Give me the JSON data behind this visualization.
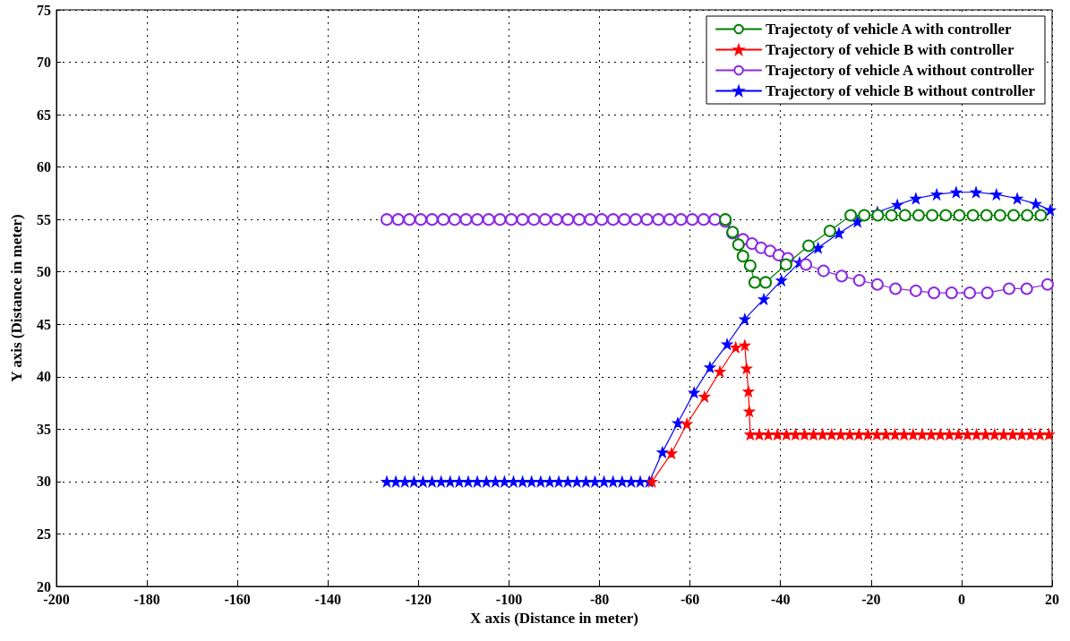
{
  "chart_data": {
    "type": "line",
    "xlabel": "X axis (Distance in meter)",
    "ylabel": "Y axis (Distance in meter)",
    "xlim": [
      -200,
      20
    ],
    "xticks": [
      -200,
      -180,
      -160,
      -140,
      -120,
      -100,
      -80,
      -60,
      -40,
      -20,
      0,
      20
    ],
    "ylim": [
      20,
      75
    ],
    "yticks": [
      20,
      25,
      30,
      35,
      40,
      45,
      50,
      55,
      60,
      65,
      70,
      75
    ],
    "grid": true,
    "legend": "top right",
    "line_style": "solid",
    "series": [
      {
        "name": "Trajectoty of vehicle A with controller",
        "color": "#008000",
        "marker": "circle",
        "x": [
          -52.2,
          -50.6,
          -49.3,
          -48.3,
          -46.7,
          -45.7,
          -43.3,
          -38.8,
          -33.8,
          -29.1,
          -24.5,
          -21.5,
          -18.5,
          -15.5,
          -12.5,
          -9.5,
          -6.5,
          -3.5,
          -0.5,
          2.5,
          5.5,
          8.5,
          11.5,
          14.5,
          17.5
        ],
        "values": [
          55,
          53.8,
          52.6,
          51.5,
          50.6,
          49.0,
          49.0,
          50.7,
          52.5,
          53.9,
          55.4,
          55.4,
          55.4,
          55.4,
          55.4,
          55.4,
          55.4,
          55.4,
          55.4,
          55.4,
          55.4,
          55.4,
          55.4,
          55.4,
          55.4
        ]
      },
      {
        "name": "Trajectory of vehicle B with controller",
        "color": "#ff0000",
        "marker": "star",
        "x": [
          -68.4,
          -64.1,
          -60.7,
          -56.8,
          -53.4,
          -49.9,
          -47.9,
          -47.5,
          -47.1,
          -46.9,
          -46.7,
          -44.7,
          -42.7,
          -40.7,
          -38.7,
          -36.7,
          -34.7,
          -32.7,
          -30.7,
          -28.7,
          -26.7,
          -24.7,
          -22.7,
          -20.7,
          -18.7,
          -16.7,
          -14.7,
          -12.7,
          -10.7,
          -8.7,
          -6.7,
          -4.7,
          -2.7,
          -0.7,
          1.3,
          3.3,
          5.3,
          7.3,
          9.3,
          11.3,
          13.3,
          15.3,
          17.3,
          19.3
        ],
        "values": [
          30,
          32.7,
          35.5,
          38.1,
          40.5,
          42.8,
          43.0,
          40.8,
          38.6,
          36.7,
          34.5,
          34.5,
          34.5,
          34.5,
          34.5,
          34.5,
          34.5,
          34.5,
          34.5,
          34.5,
          34.5,
          34.5,
          34.5,
          34.5,
          34.5,
          34.5,
          34.5,
          34.5,
          34.5,
          34.5,
          34.5,
          34.5,
          34.5,
          34.5,
          34.5,
          34.5,
          34.5,
          34.5,
          34.5,
          34.5,
          34.5,
          34.5,
          34.5,
          34.5
        ]
      },
      {
        "name": "Trajectory of vehicle A without controller",
        "color": "#8a2be2",
        "marker": "circle",
        "x": [
          -127,
          -124.5,
          -122,
          -119.5,
          -117,
          -114.5,
          -112,
          -109.5,
          -107,
          -104.5,
          -102,
          -99.5,
          -97,
          -94.5,
          -92,
          -89.5,
          -87,
          -84.5,
          -82,
          -79.5,
          -77,
          -74.5,
          -72,
          -69.5,
          -67,
          -64.5,
          -62,
          -59.5,
          -57,
          -54.5,
          -52.2,
          -50.6,
          -48.3,
          -46.3,
          -44.3,
          -42.3,
          -40.4,
          -38.4,
          -34.4,
          -30.5,
          -26.5,
          -22.6,
          -18.6,
          -14.6,
          -10.1,
          -6.1,
          -2.2,
          1.8,
          5.7,
          10.5,
          14.4,
          19
        ],
        "values": [
          55,
          55,
          55,
          55,
          55,
          55,
          55,
          55,
          55,
          55,
          55,
          55,
          55,
          55,
          55,
          55,
          55,
          55,
          55,
          55,
          55,
          55,
          55,
          55,
          55,
          55,
          55,
          55,
          55,
          55,
          54.8,
          53.7,
          53.1,
          52.7,
          52.3,
          52.0,
          51.6,
          51.3,
          50.7,
          50.1,
          49.6,
          49.2,
          48.8,
          48.4,
          48.2,
          48.0,
          48.0,
          48.0,
          48.0,
          48.4,
          48.4,
          48.8
        ]
      },
      {
        "name": "Trajectory of vehicle B without controller",
        "color": "#0000ff",
        "marker": "star",
        "x": [
          -127,
          -125,
          -123,
          -121,
          -119,
          -117,
          -115,
          -113,
          -111,
          -109,
          -107,
          -105,
          -103,
          -101,
          -99,
          -97,
          -95,
          -93,
          -91,
          -89,
          -87,
          -85,
          -83,
          -81,
          -79,
          -77,
          -75,
          -73,
          -71,
          -69,
          -66.1,
          -62.7,
          -59.1,
          -55.6,
          -51.8,
          -47.9,
          -43.7,
          -39.8,
          -35.8,
          -31.7,
          -27.1,
          -23.0,
          -18.6,
          -14.2,
          -10.1,
          -5.5,
          -1.2,
          3.2,
          7.7,
          12.3,
          16.4,
          19.6
        ],
        "values": [
          30,
          30,
          30,
          30,
          30,
          30,
          30,
          30,
          30,
          30,
          30,
          30,
          30,
          30,
          30,
          30,
          30,
          30,
          30,
          30,
          30,
          30,
          30,
          30,
          30,
          30,
          30,
          30,
          30,
          30,
          32.8,
          35.6,
          38.5,
          40.9,
          43.1,
          45.5,
          47.4,
          49.2,
          50.9,
          52.3,
          53.7,
          54.8,
          55.7,
          56.4,
          57.0,
          57.4,
          57.6,
          57.6,
          57.4,
          57.0,
          56.5,
          55.9
        ]
      }
    ]
  }
}
